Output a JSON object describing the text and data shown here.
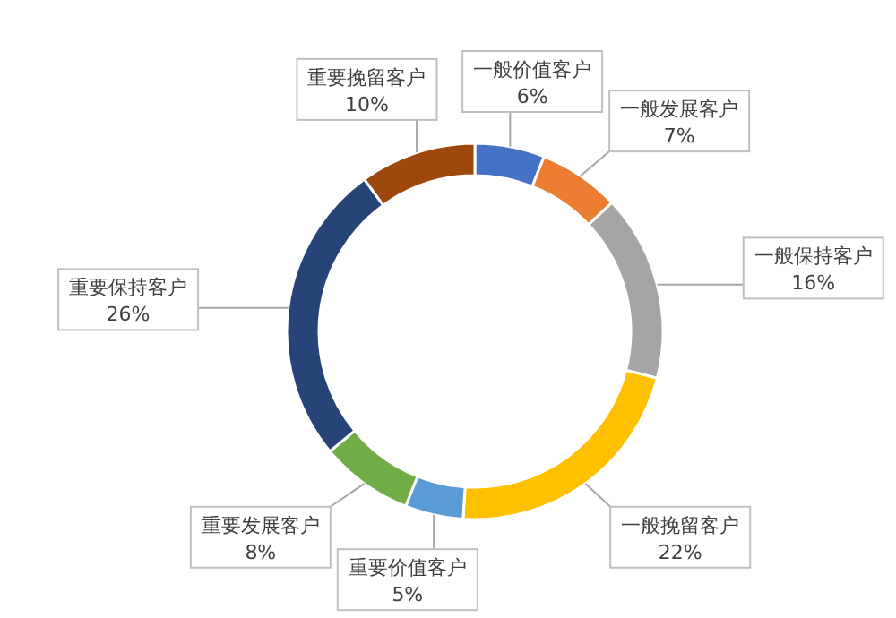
{
  "chart_data": {
    "type": "donut",
    "categories": [
      "一般价值客户",
      "一般发展客户",
      "一般保持客户",
      "一般挽留客户",
      "重要价值客户",
      "重要发展客户",
      "重要保持客户",
      "重要挽留客户"
    ],
    "values": [
      6,
      7,
      16,
      22,
      5,
      8,
      26,
      10
    ],
    "colors": [
      "#4472c4",
      "#ed7d31",
      "#a5a5a5",
      "#ffc000",
      "#5b9bd5",
      "#70ad47",
      "#264478",
      "#9e480e"
    ],
    "value_labels": [
      "6%",
      "7%",
      "16%",
      "22%",
      "5%",
      "8%",
      "26%",
      "10%"
    ]
  }
}
